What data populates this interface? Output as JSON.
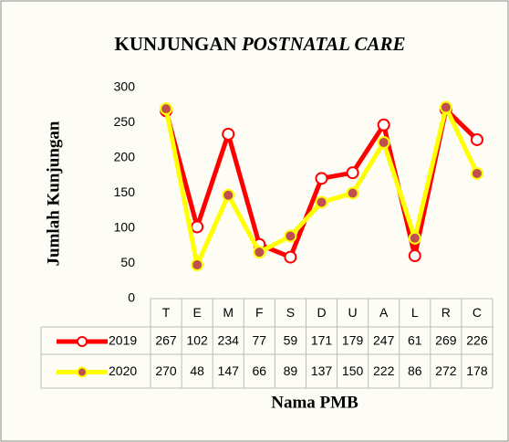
{
  "chart_data": {
    "type": "line",
    "title": [
      "KUNJUNGAN",
      "POSTNATAL CARE"
    ],
    "x_label": "Nama PMB",
    "y_label": "Jumlah Kunjungan",
    "categories": [
      "T",
      "E",
      "M",
      "F",
      "S",
      "D",
      "U",
      "A",
      "L",
      "R",
      "C"
    ],
    "series": [
      {
        "name": "2019",
        "color": "#ff0000",
        "values": [
          267,
          102,
          234,
          77,
          59,
          171,
          179,
          247,
          61,
          269,
          226
        ]
      },
      {
        "name": "2020",
        "color": "#ffff00",
        "values": [
          270,
          48,
          147,
          66,
          89,
          137,
          150,
          222,
          86,
          272,
          178
        ]
      }
    ],
    "ylim": [
      0,
      300
    ],
    "yticks": [
      0,
      50,
      100,
      150,
      200,
      250,
      300
    ],
    "grid": false
  }
}
